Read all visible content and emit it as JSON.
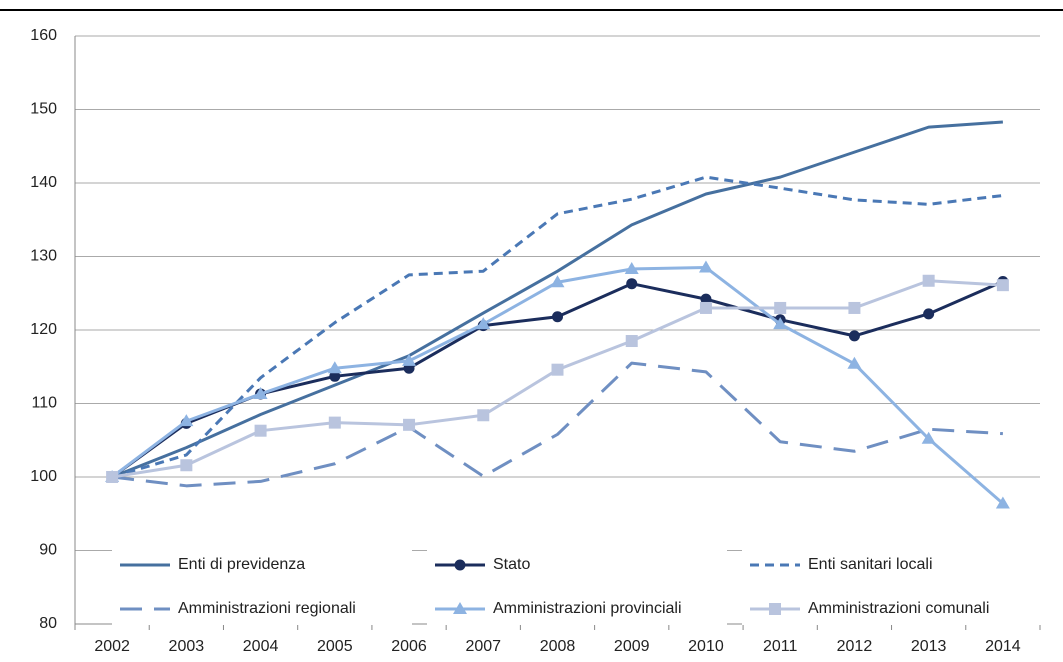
{
  "chart_data": {
    "type": "line",
    "categories": [
      "2002",
      "2003",
      "2004",
      "2005",
      "2006",
      "2007",
      "2008",
      "2009",
      "2010",
      "2011",
      "2012",
      "2013",
      "2014"
    ],
    "series": [
      {
        "name": "Enti di previdenza",
        "color": "#46709f",
        "width": 3,
        "values": [
          100,
          104,
          108.5,
          112.5,
          116.5,
          122.3,
          128,
          134.3,
          138.5,
          140.8,
          144.2,
          147.6,
          148.3
        ]
      },
      {
        "name": "Stato",
        "color": "#1b2d5c",
        "width": 3,
        "marker": "circle",
        "values": [
          100,
          107.3,
          111.3,
          113.7,
          114.8,
          120.6,
          121.8,
          126.3,
          124.2,
          121.4,
          119.2,
          122.2,
          126.6
        ]
      },
      {
        "name": "Enti sanitari locali",
        "color": "#4a78b5",
        "width": 3,
        "dash": "9 6",
        "values": [
          100,
          103,
          113.5,
          121,
          127.5,
          128,
          135.8,
          137.8,
          140.8,
          139.3,
          137.7,
          137.1,
          138.3
        ]
      },
      {
        "name": "Amministrazioni regionali",
        "color": "#6f8fc2",
        "width": 3,
        "dash": "22 12",
        "values": [
          100,
          98.8,
          99.4,
          101.8,
          106.8,
          100.1,
          105.8,
          115.5,
          114.3,
          104.8,
          103.5,
          106.5,
          105.9
        ]
      },
      {
        "name": "Amministrazioni provinciali",
        "color": "#8db3e2",
        "width": 3,
        "marker": "triangle",
        "values": [
          100,
          107.6,
          111.3,
          114.8,
          115.8,
          120.8,
          126.5,
          128.3,
          128.5,
          120.8,
          115.4,
          105.2,
          96.4
        ]
      },
      {
        "name": "Amministrazioni comunali",
        "color": "#b9c4de",
        "width": 3,
        "marker": "square",
        "values": [
          100,
          101.6,
          106.3,
          107.4,
          107.1,
          108.4,
          114.6,
          118.5,
          123,
          123,
          123,
          126.7,
          126.1
        ]
      }
    ],
    "ylim": [
      80,
      160
    ],
    "yticks": [
      80,
      90,
      100,
      110,
      120,
      130,
      140,
      150,
      160
    ],
    "grid": true,
    "legend": "bottom"
  }
}
